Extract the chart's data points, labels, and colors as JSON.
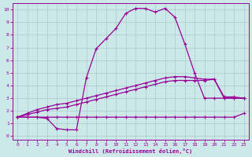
{
  "xlabel": "Windchill (Refroidissement éolien,°C)",
  "background_color": "#cce8e8",
  "grid_color": "#aacccc",
  "line_color": "#990099",
  "xlim": [
    -0.5,
    23.5
  ],
  "ylim": [
    -0.3,
    10.5
  ],
  "xticks": [
    0,
    1,
    2,
    3,
    4,
    5,
    6,
    7,
    8,
    9,
    10,
    11,
    12,
    13,
    14,
    15,
    16,
    17,
    18,
    19,
    20,
    21,
    22,
    23
  ],
  "yticks": [
    0,
    1,
    2,
    3,
    4,
    5,
    6,
    7,
    8,
    9,
    10
  ],
  "lines": [
    {
      "x": [
        0,
        1,
        2,
        3,
        4,
        5,
        6,
        7,
        8,
        9,
        10,
        11,
        12,
        13,
        14,
        15,
        16,
        17,
        18,
        19,
        20,
        21,
        22,
        23
      ],
      "y": [
        1.5,
        1.5,
        1.5,
        1.5,
        1.5,
        1.5,
        1.5,
        1.5,
        1.5,
        1.5,
        1.5,
        1.5,
        1.5,
        1.5,
        1.5,
        1.5,
        1.5,
        1.5,
        1.5,
        1.5,
        1.5,
        1.5,
        1.5,
        1.8
      ]
    },
    {
      "x": [
        0,
        1,
        2,
        3,
        4,
        5,
        6,
        7,
        8,
        9,
        10,
        11,
        12,
        13,
        14,
        15,
        16,
        17,
        18,
        19,
        20,
        21,
        22,
        23
      ],
      "y": [
        1.5,
        1.7,
        1.9,
        2.1,
        2.2,
        2.3,
        2.5,
        2.7,
        2.9,
        3.1,
        3.3,
        3.5,
        3.7,
        3.9,
        4.1,
        4.3,
        4.4,
        4.4,
        4.4,
        4.4,
        4.5,
        3.0,
        3.0,
        3.0
      ]
    },
    {
      "x": [
        0,
        1,
        2,
        3,
        4,
        5,
        6,
        7,
        8,
        9,
        10,
        11,
        12,
        13,
        14,
        15,
        16,
        17,
        18,
        19,
        20,
        21,
        22,
        23
      ],
      "y": [
        1.5,
        1.8,
        2.1,
        2.3,
        2.5,
        2.6,
        2.8,
        3.0,
        3.2,
        3.4,
        3.6,
        3.8,
        4.0,
        4.2,
        4.4,
        4.6,
        4.7,
        4.7,
        4.6,
        4.5,
        4.5,
        3.1,
        3.1,
        3.0
      ]
    },
    {
      "x": [
        0,
        1,
        2,
        3,
        4,
        5,
        6,
        7,
        8,
        9,
        10,
        11,
        12,
        13,
        14,
        15,
        16,
        17,
        18,
        19,
        20,
        21,
        22,
        23
      ],
      "y": [
        1.5,
        1.5,
        1.5,
        1.4,
        0.6,
        0.5,
        0.5,
        4.6,
        6.9,
        7.7,
        8.5,
        9.7,
        10.1,
        10.1,
        9.8,
        10.1,
        9.4,
        7.3,
        5.0,
        3.0,
        3.0,
        3.0,
        3.0,
        3.0
      ]
    }
  ]
}
